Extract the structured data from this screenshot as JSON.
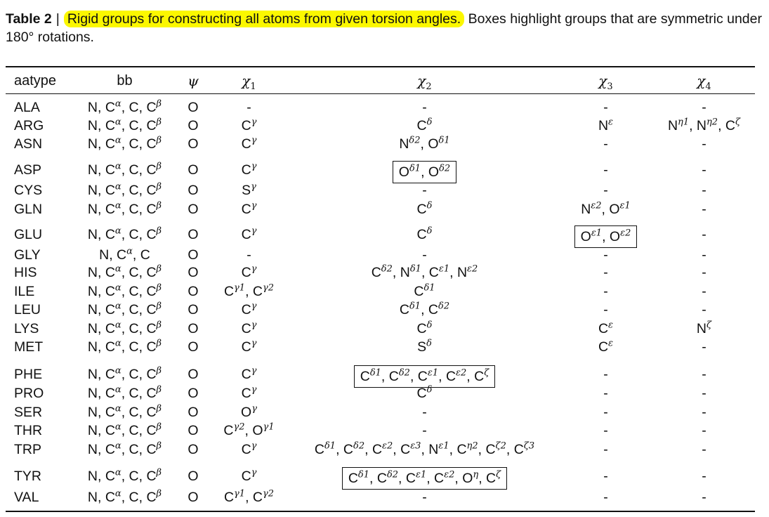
{
  "caption": {
    "label": "Table 2",
    "separator": "|",
    "highlight": "Rigid groups for constructing all atoms from given torsion angles.",
    "rest": "Boxes highlight groups that are symmetric under 180° rotations."
  },
  "headers": {
    "aatype": "aatype",
    "bb": "bb",
    "psi": "ψ",
    "chi1": "χ",
    "chi1_sub": "1",
    "chi2": "χ",
    "chi2_sub": "2",
    "chi3": "χ",
    "chi3_sub": "3",
    "chi4": "χ",
    "chi4_sub": "4"
  },
  "rows": [
    {
      "aatype": "ALA",
      "bb": "N, C^α, C, C^β",
      "psi": "O",
      "chi1": "-",
      "chi2": "-",
      "chi3": "-",
      "chi4": "-",
      "boxed": ""
    },
    {
      "aatype": "ARG",
      "bb": "N, C^α, C, C^β",
      "psi": "O",
      "chi1": "C^γ",
      "chi2": "C^δ",
      "chi3": "N^ε",
      "chi4": "N^η1, N^η2, C^ζ",
      "boxed": ""
    },
    {
      "aatype": "ASN",
      "bb": "N, C^α, C, C^β",
      "psi": "O",
      "chi1": "C^γ",
      "chi2": "N^δ2, O^δ1",
      "chi3": "-",
      "chi4": "-",
      "boxed": ""
    },
    {
      "aatype": "ASP",
      "bb": "N, C^α, C, C^β",
      "psi": "O",
      "chi1": "C^γ",
      "chi2": "O^δ1, O^δ2",
      "chi3": "-",
      "chi4": "-",
      "boxed": "chi2"
    },
    {
      "aatype": "CYS",
      "bb": "N, C^α, C, C^β",
      "psi": "O",
      "chi1": "S^γ",
      "chi2": "-",
      "chi3": "-",
      "chi4": "-",
      "boxed": ""
    },
    {
      "aatype": "GLN",
      "bb": "N, C^α, C, C^β",
      "psi": "O",
      "chi1": "C^γ",
      "chi2": "C^δ",
      "chi3": "N^ε2, O^ε1",
      "chi4": "-",
      "boxed": ""
    },
    {
      "aatype": "GLU",
      "bb": "N, C^α, C, C^β",
      "psi": "O",
      "chi1": "C^γ",
      "chi2": "C^δ",
      "chi3": "O^ε1, O^ε2",
      "chi4": "-",
      "boxed": "chi3"
    },
    {
      "aatype": "GLY",
      "bb": "N, C^α, C",
      "psi": "O",
      "chi1": "-",
      "chi2": "-",
      "chi3": "-",
      "chi4": "-",
      "boxed": ""
    },
    {
      "aatype": "HIS",
      "bb": "N, C^α, C, C^β",
      "psi": "O",
      "chi1": "C^γ",
      "chi2": "C^δ2, N^δ1, C^ε1, N^ε2",
      "chi3": "-",
      "chi4": "-",
      "boxed": ""
    },
    {
      "aatype": "ILE",
      "bb": "N, C^α, C, C^β",
      "psi": "O",
      "chi1": "C^γ1, C^γ2",
      "chi2": "C^δ1",
      "chi3": "-",
      "chi4": "-",
      "boxed": ""
    },
    {
      "aatype": "LEU",
      "bb": "N, C^α, C, C^β",
      "psi": "O",
      "chi1": "C^γ",
      "chi2": "C^δ1, C^δ2",
      "chi3": "-",
      "chi4": "-",
      "boxed": ""
    },
    {
      "aatype": "LYS",
      "bb": "N, C^α, C, C^β",
      "psi": "O",
      "chi1": "C^γ",
      "chi2": "C^δ",
      "chi3": "C^ε",
      "chi4": "N^ζ",
      "boxed": ""
    },
    {
      "aatype": "MET",
      "bb": "N, C^α, C, C^β",
      "psi": "O",
      "chi1": "C^γ",
      "chi2": "S^δ",
      "chi3": "C^ε",
      "chi4": "-",
      "boxed": ""
    },
    {
      "aatype": "PHE",
      "bb": "N, C^α, C, C^β",
      "psi": "O",
      "chi1": "C^γ",
      "chi2": "C^δ1, C^δ2, C^ε1, C^ε2, C^ζ",
      "chi3": "-",
      "chi4": "-",
      "boxed": "chi2"
    },
    {
      "aatype": "PRO",
      "bb": "N, C^α, C, C^β",
      "psi": "O",
      "chi1": "C^γ",
      "chi2": "C^δ",
      "chi3": "-",
      "chi4": "-",
      "boxed": ""
    },
    {
      "aatype": "SER",
      "bb": "N, C^α, C, C^β",
      "psi": "O",
      "chi1": "O^γ",
      "chi2": "-",
      "chi3": "-",
      "chi4": "-",
      "boxed": ""
    },
    {
      "aatype": "THR",
      "bb": "N, C^α, C, C^β",
      "psi": "O",
      "chi1": "C^γ2, O^γ1",
      "chi2": "-",
      "chi3": "-",
      "chi4": "-",
      "boxed": ""
    },
    {
      "aatype": "TRP",
      "bb": "N, C^α, C, C^β",
      "psi": "O",
      "chi1": "C^γ",
      "chi2": "C^δ1, C^δ2, C^ε2, C^ε3, N^ε1, C^η2, C^ζ2, C^ζ3",
      "chi3": "-",
      "chi4": "-",
      "boxed": ""
    },
    {
      "aatype": "TYR",
      "bb": "N, C^α, C, C^β",
      "psi": "O",
      "chi1": "C^γ",
      "chi2": "C^δ1, C^δ2, C^ε1, C^ε2, O^η, C^ζ",
      "chi3": "-",
      "chi4": "-",
      "boxed": "chi2"
    },
    {
      "aatype": "VAL",
      "bb": "N, C^α, C, C^β",
      "psi": "O",
      "chi1": "C^γ1, C^γ2",
      "chi2": "-",
      "chi3": "-",
      "chi4": "-",
      "boxed": ""
    }
  ]
}
